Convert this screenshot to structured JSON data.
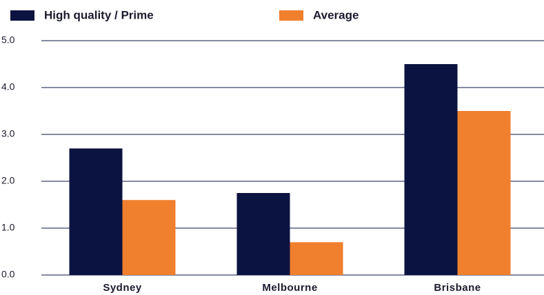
{
  "chart_data": {
    "type": "bar",
    "categories": [
      "Sydney",
      "Melbourne",
      "Brisbane"
    ],
    "series": [
      {
        "name": "High quality / Prime",
        "color": "#0b1340",
        "values": [
          2.7,
          1.75,
          4.5
        ]
      },
      {
        "name": "Average",
        "color": "#f07f2e",
        "values": [
          1.6,
          0.7,
          3.5
        ]
      }
    ],
    "ylim": [
      0,
      5
    ],
    "yticks": [
      {
        "value": 0,
        "label": "0.0"
      },
      {
        "value": 1,
        "label": "1.0"
      },
      {
        "value": 2,
        "label": "2.0"
      },
      {
        "value": 3,
        "label": "3.0"
      },
      {
        "value": 4,
        "label": "4.0"
      },
      {
        "value": 5,
        "label": "5.0"
      }
    ],
    "grid": true,
    "legend": "top"
  }
}
